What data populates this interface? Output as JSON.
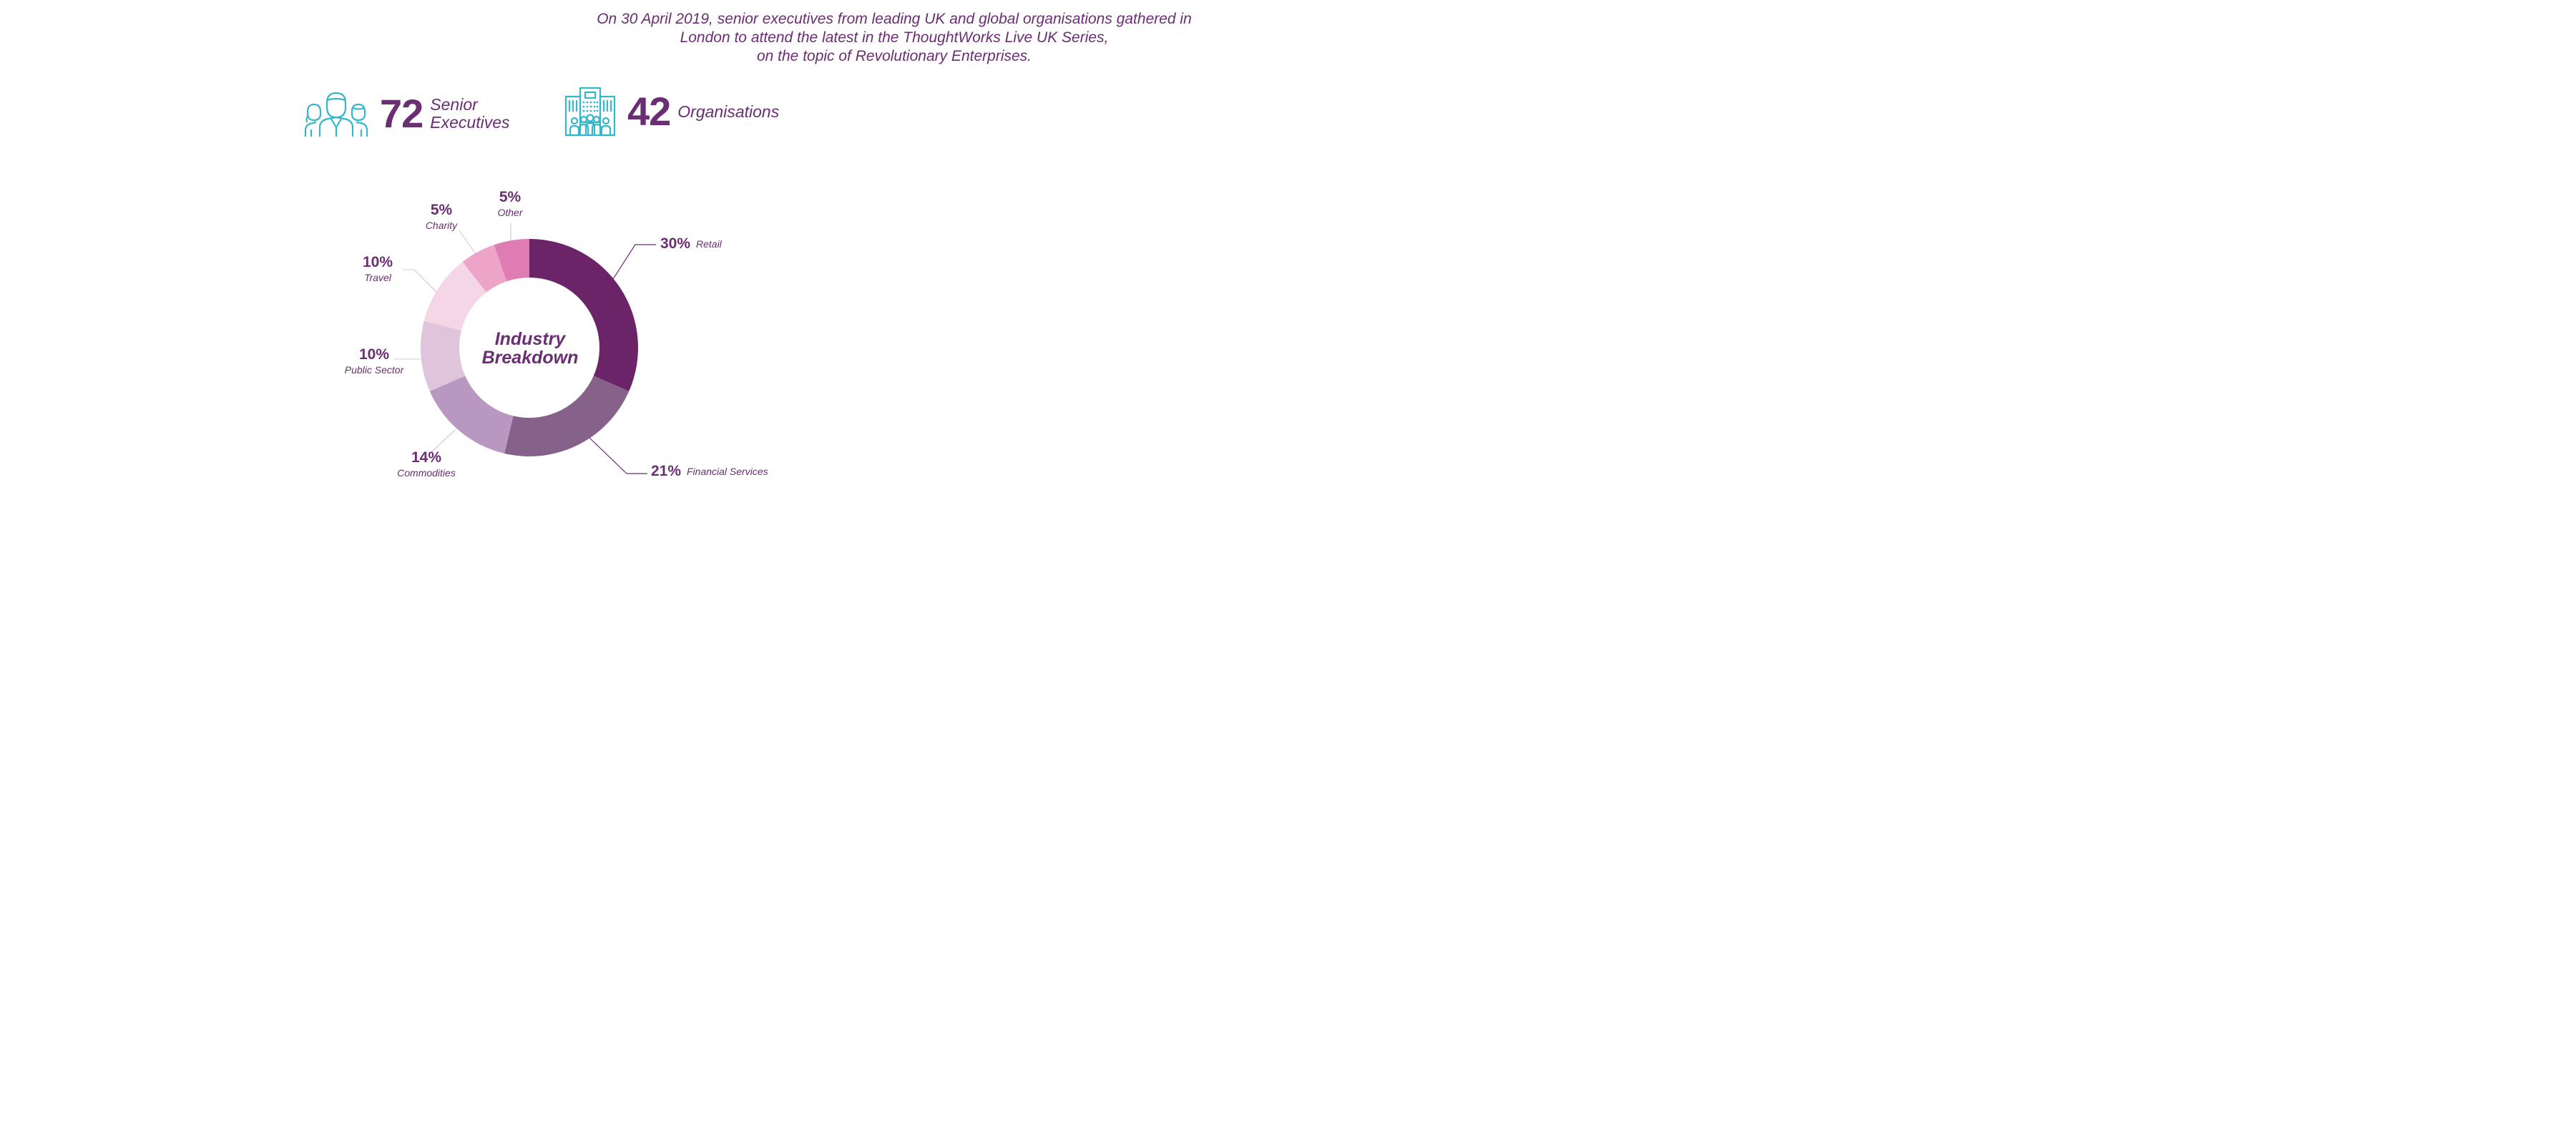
{
  "intro": {
    "line1": "On 30 April 2019, senior executives from leading UK and global organisations gathered in",
    "line2": "London to attend the latest in the ThoughtWorks Live UK Series,",
    "line3": "on the topic of Revolutionary Enterprises."
  },
  "stats": {
    "executives": {
      "number": "72",
      "label_line1": "Senior",
      "label_line2": "Executives",
      "icon": "people-group-icon"
    },
    "organisations": {
      "number": "42",
      "label": "Organisations",
      "icon": "office-building-icon"
    }
  },
  "colors": {
    "text": "#6b2d73",
    "icon": "#36b6c9"
  },
  "chart_data": {
    "type": "pie",
    "title": "Industry Breakdown",
    "slices": [
      {
        "label": "Retail",
        "value": 30,
        "display": "30%",
        "color": "#6b2468"
      },
      {
        "label": "Financial Services",
        "value": 21,
        "display": "21%",
        "color": "#86628a"
      },
      {
        "label": "Commodities",
        "value": 14,
        "display": "14%",
        "color": "#b898c0"
      },
      {
        "label": "Public Sector",
        "value": 10,
        "display": "10%",
        "color": "#e0c4dc"
      },
      {
        "label": "Travel",
        "value": 10,
        "display": "10%",
        "color": "#f4d6e6"
      },
      {
        "label": "Charity",
        "value": 5,
        "display": "5%",
        "color": "#eea4c8"
      },
      {
        "label": "Other",
        "value": 5,
        "display": "5%",
        "color": "#e07cb4"
      }
    ]
  }
}
